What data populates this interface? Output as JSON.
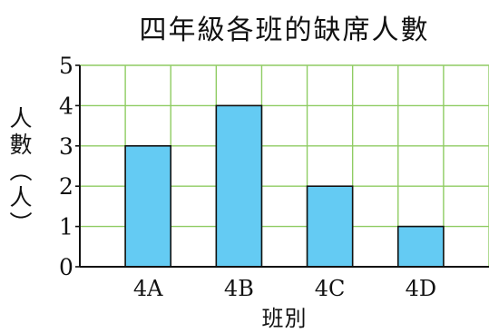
{
  "chart_data": {
    "type": "bar",
    "title": "四年級各班的缺席人數",
    "xlabel": "班別",
    "ylabel": "人數(人)",
    "categories": [
      "4A",
      "4B",
      "4C",
      "4D"
    ],
    "values": [
      3,
      4,
      2,
      1
    ],
    "ylim": [
      0,
      5
    ],
    "yticks": [
      0,
      1,
      2,
      3,
      4,
      5
    ],
    "grid": true,
    "colors": {
      "bar_fill": "#64CBF3",
      "bar_stroke": "#111111",
      "grid": "#8FCC63",
      "axis": "#111111"
    }
  }
}
